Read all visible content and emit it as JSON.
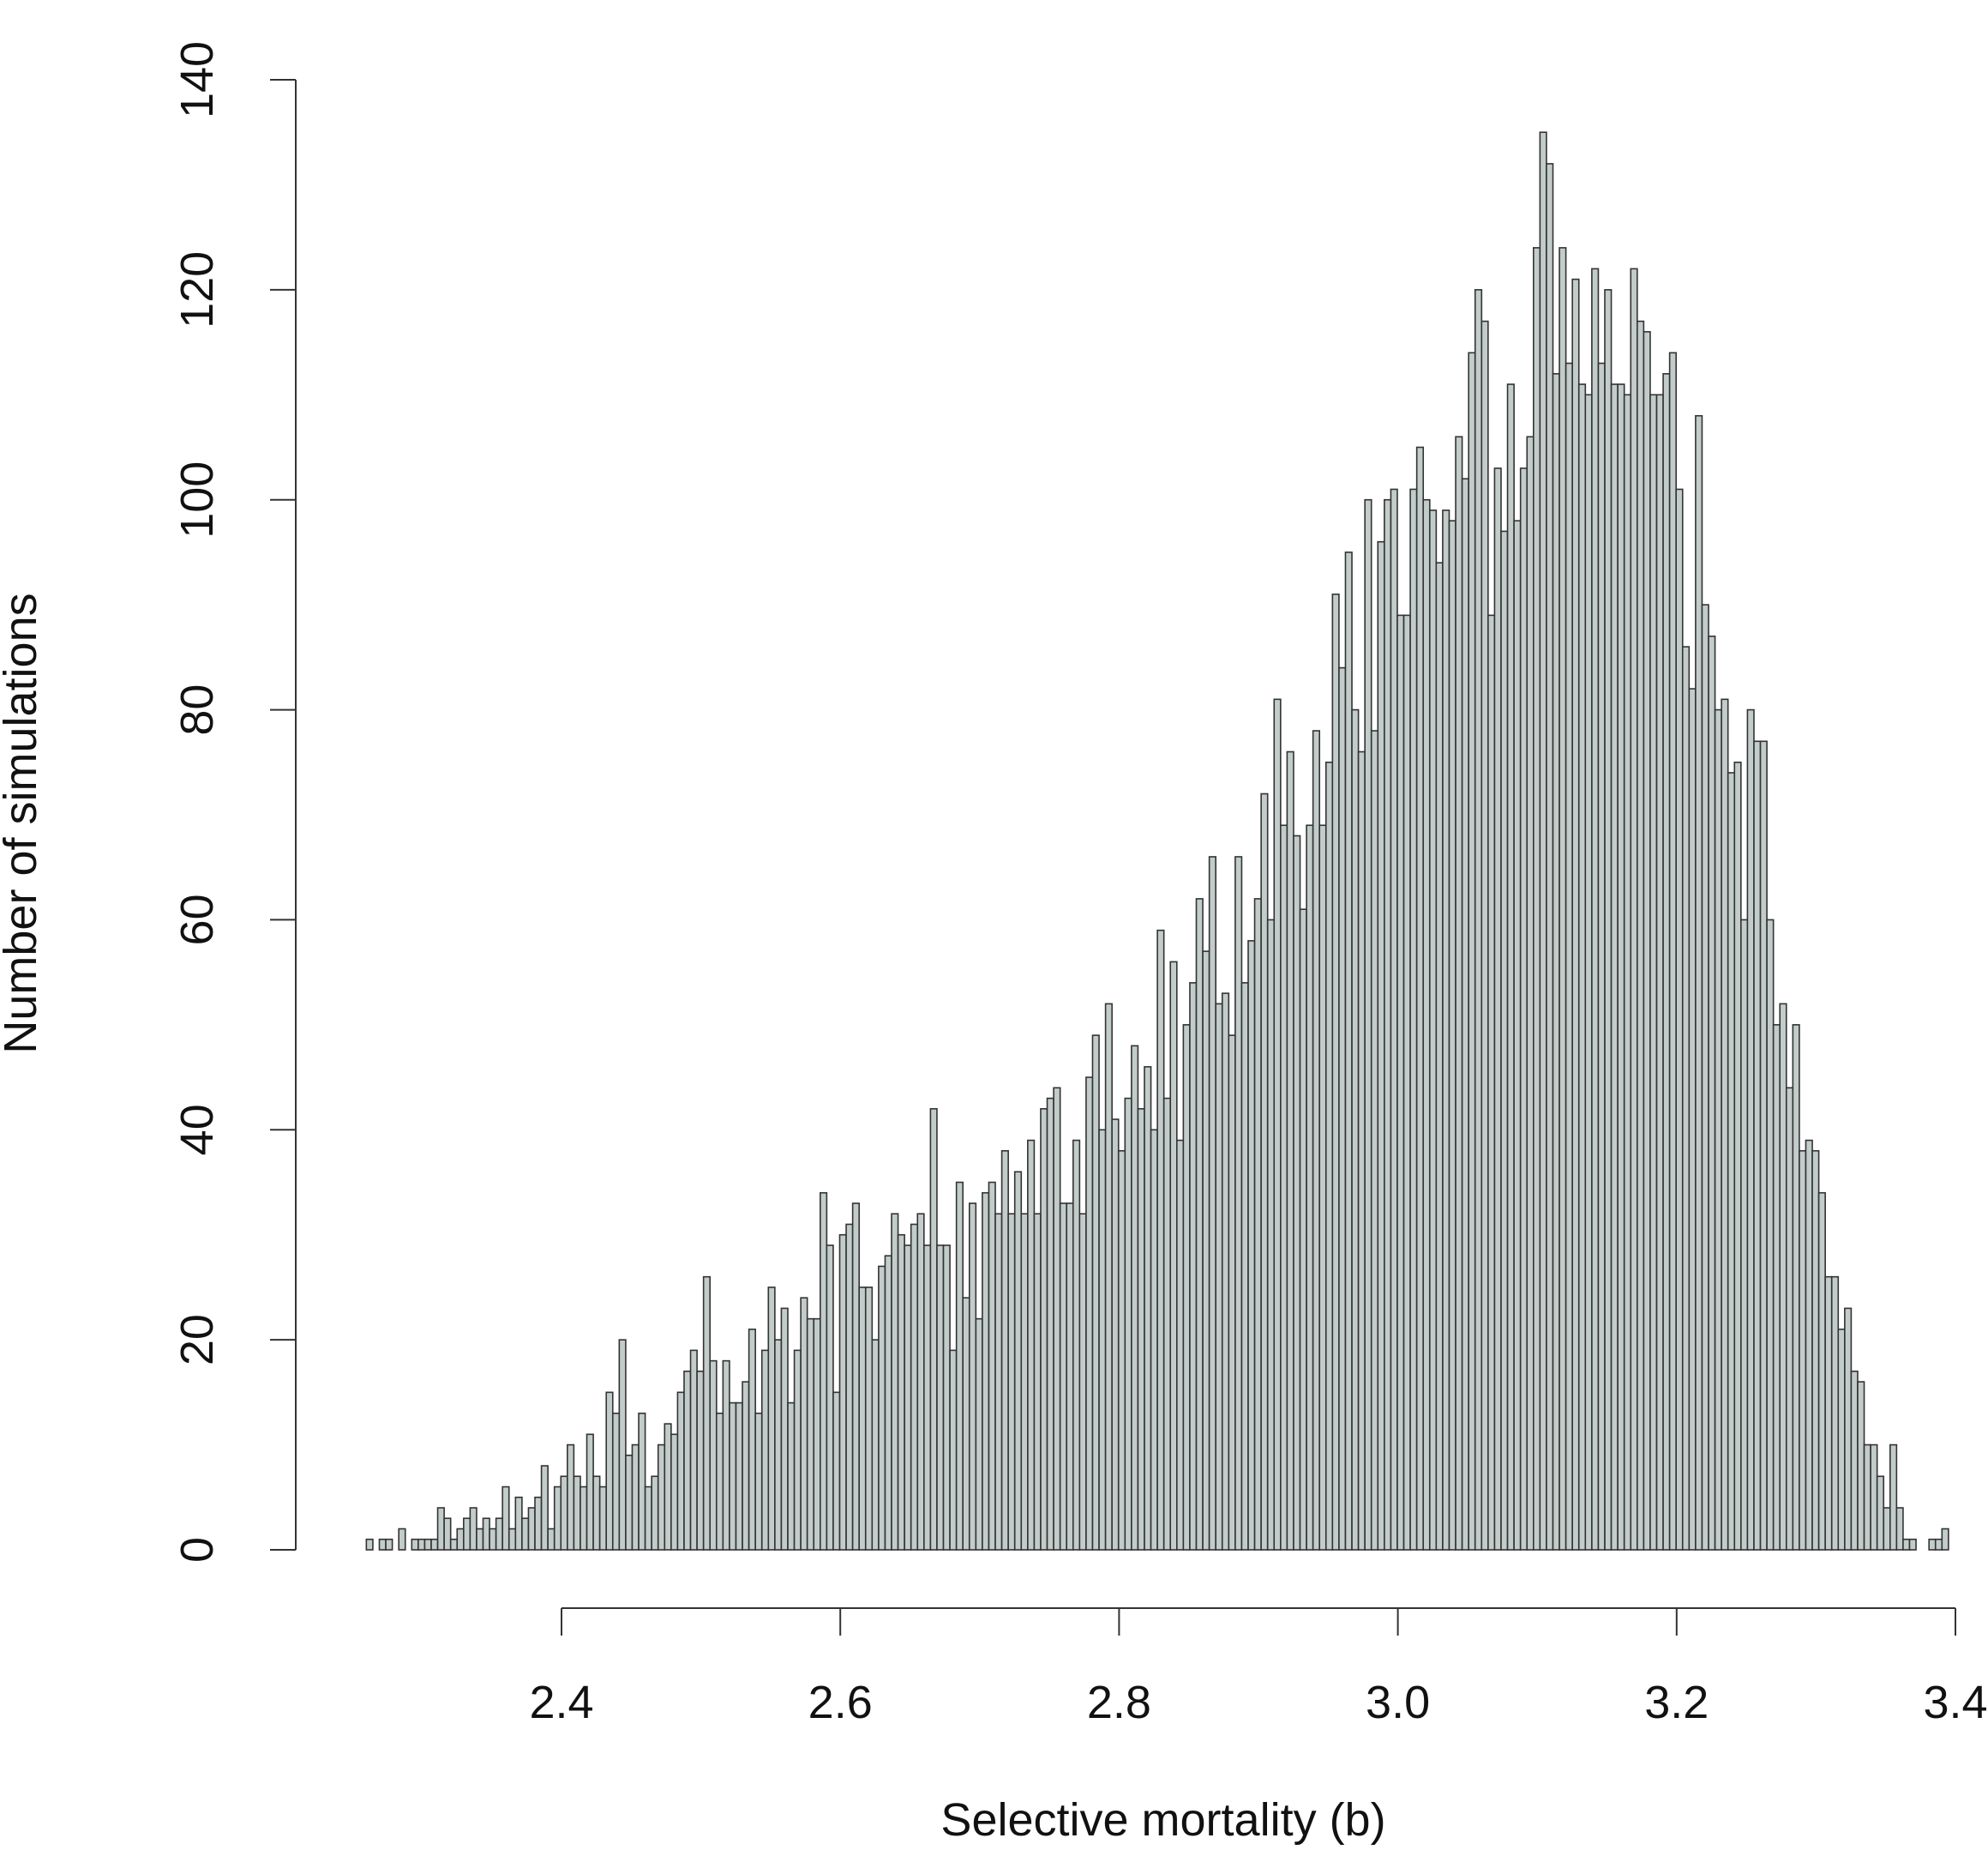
{
  "chart_data": {
    "type": "bar",
    "title": "",
    "xlabel": "Selective mortality (b)",
    "ylabel": "Number of simulations",
    "xlim": [
      2.4,
      3.4
    ],
    "ylim": [
      0,
      140
    ],
    "x_ticks": [
      "2.4",
      "2.6",
      "2.8",
      "3.0",
      "3.2",
      "3.4"
    ],
    "y_ticks": [
      "0",
      "20",
      "40",
      "60",
      "80",
      "100",
      "120",
      "140"
    ],
    "grid": false,
    "bar_color": "#c2ccca",
    "edge_color": "#333333",
    "bin_start": 2.26,
    "bin_end": 3.395,
    "values": [
      1,
      0,
      1,
      1,
      0,
      2,
      0,
      1,
      1,
      1,
      1,
      4,
      3,
      1,
      2,
      3,
      4,
      2,
      3,
      2,
      3,
      6,
      2,
      5,
      3,
      4,
      5,
      8,
      2,
      6,
      7,
      10,
      7,
      6,
      11,
      7,
      6,
      15,
      13,
      20,
      9,
      10,
      13,
      6,
      7,
      10,
      12,
      11,
      15,
      17,
      19,
      17,
      26,
      18,
      13,
      18,
      14,
      14,
      16,
      21,
      13,
      19,
      25,
      20,
      23,
      14,
      19,
      24,
      22,
      22,
      34,
      29,
      15,
      30,
      31,
      33,
      25,
      25,
      20,
      27,
      28,
      32,
      30,
      29,
      31,
      32,
      29,
      42,
      29,
      29,
      19,
      35,
      24,
      33,
      22,
      34,
      35,
      32,
      38,
      32,
      36,
      32,
      39,
      32,
      42,
      43,
      44,
      33,
      33,
      39,
      32,
      45,
      49,
      40,
      52,
      41,
      38,
      43,
      48,
      42,
      46,
      40,
      59,
      43,
      56,
      39,
      50,
      54,
      62,
      57,
      66,
      52,
      53,
      49,
      66,
      54,
      58,
      62,
      72,
      60,
      81,
      69,
      76,
      68,
      61,
      69,
      78,
      69,
      75,
      91,
      84,
      95,
      80,
      76,
      100,
      78,
      96,
      100,
      101,
      89,
      89,
      101,
      105,
      100,
      99,
      94,
      99,
      98,
      106,
      102,
      114,
      120,
      117,
      89,
      103,
      97,
      111,
      98,
      103,
      106,
      124,
      135,
      132,
      112,
      124,
      113,
      121,
      111,
      110,
      122,
      113,
      120,
      111,
      111,
      110,
      122,
      117,
      116,
      110,
      110,
      112,
      114,
      101,
      86,
      82,
      108,
      90,
      87,
      80,
      81,
      74,
      75,
      60,
      80,
      77,
      77,
      60,
      50,
      52,
      44,
      50,
      38,
      39,
      38,
      34,
      26,
      26,
      21,
      23,
      17,
      16,
      10,
      10,
      7,
      4,
      10,
      4,
      1,
      1,
      0,
      0,
      1,
      1,
      2
    ]
  }
}
